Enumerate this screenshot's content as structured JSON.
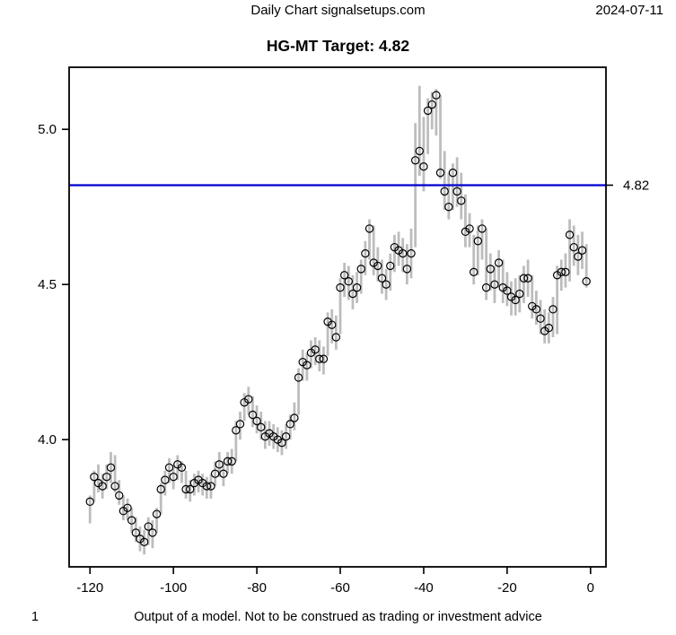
{
  "header": {
    "center": "Daily Chart signalsetups.com",
    "date": "2024-07-11"
  },
  "title": "HG-MT Target: 4.82",
  "footer": {
    "page": "1",
    "disclaimer": "Output of a model. Not to be construed as trading or investment advice"
  },
  "chart_data": {
    "type": "scatter",
    "subtype": "daily close dots with high-low range bars",
    "title": "HG-MT Target: 4.82",
    "xlabel": "",
    "ylabel": "",
    "legend": "none",
    "grid": false,
    "x_ticks": [
      -120,
      -100,
      -80,
      -60,
      -40,
      -20,
      0
    ],
    "y_ticks": [
      4.0,
      4.5,
      5.0
    ],
    "xlim": [
      -125,
      3.7
    ],
    "ylim": [
      3.59,
      5.2
    ],
    "target_line": {
      "value": 4.82,
      "label": "4.82",
      "color": "#0000cd",
      "label_side": "right"
    },
    "colors": {
      "range_bar": "#bdbdbd",
      "point_stroke": "#000000",
      "box": "#000000",
      "background": "#ffffff"
    },
    "x": [
      -120,
      -119,
      -118,
      -117,
      -116,
      -115,
      -114,
      -113,
      -112,
      -111,
      -110,
      -109,
      -108,
      -107,
      -106,
      -105,
      -104,
      -103,
      -102,
      -101,
      -100,
      -99,
      -98,
      -97,
      -96,
      -95,
      -94,
      -93,
      -92,
      -91,
      -90,
      -89,
      -88,
      -87,
      -86,
      -85,
      -84,
      -83,
      -82,
      -81,
      -80,
      -79,
      -78,
      -77,
      -76,
      -75,
      -74,
      -73,
      -72,
      -71,
      -70,
      -69,
      -68,
      -67,
      -66,
      -65,
      -64,
      -63,
      -62,
      -61,
      -60,
      -59,
      -58,
      -57,
      -56,
      -55,
      -54,
      -53,
      -52,
      -51,
      -50,
      -49,
      -48,
      -47,
      -46,
      -45,
      -44,
      -43,
      -42,
      -41,
      -40,
      -39,
      -38,
      -37,
      -36,
      -35,
      -34,
      -33,
      -32,
      -31,
      -30,
      -29,
      -28,
      -27,
      -26,
      -25,
      -24,
      -23,
      -22,
      -21,
      -20,
      -19,
      -18,
      -17,
      -16,
      -15,
      -14,
      -13,
      -12,
      -11,
      -10,
      -9,
      -8,
      -7,
      -6,
      -5,
      -4,
      -3,
      -2,
      -1
    ],
    "close": [
      3.8,
      3.88,
      3.86,
      3.85,
      3.88,
      3.91,
      3.85,
      3.82,
      3.77,
      3.78,
      3.74,
      3.7,
      3.68,
      3.67,
      3.72,
      3.7,
      3.76,
      3.84,
      3.87,
      3.91,
      3.88,
      3.92,
      3.91,
      3.84,
      3.84,
      3.86,
      3.87,
      3.86,
      3.85,
      3.85,
      3.89,
      3.92,
      3.89,
      3.93,
      3.93,
      4.03,
      4.05,
      4.12,
      4.13,
      4.08,
      4.06,
      4.04,
      4.01,
      4.02,
      4.01,
      4.0,
      3.99,
      4.01,
      4.05,
      4.07,
      4.2,
      4.25,
      4.24,
      4.28,
      4.29,
      4.26,
      4.26,
      4.38,
      4.37,
      4.33,
      4.49,
      4.53,
      4.51,
      4.47,
      4.49,
      4.55,
      4.6,
      4.68,
      4.57,
      4.56,
      4.52,
      4.5,
      4.56,
      4.62,
      4.61,
      4.6,
      4.55,
      4.6,
      4.9,
      4.93,
      4.88,
      5.06,
      5.08,
      5.11,
      4.86,
      4.8,
      4.75,
      4.86,
      4.8,
      4.77,
      4.67,
      4.68,
      4.54,
      4.64,
      4.68,
      4.49,
      4.55,
      4.5,
      4.57,
      4.49,
      4.48,
      4.46,
      4.45,
      4.47,
      4.52,
      4.52,
      4.43,
      4.42,
      4.39,
      4.35,
      4.36,
      4.42,
      4.53,
      4.54,
      4.54,
      4.66,
      4.62,
      4.59,
      4.61,
      4.51
    ],
    "low": [
      3.73,
      3.8,
      3.83,
      3.81,
      3.84,
      3.86,
      3.83,
      3.79,
      3.74,
      3.74,
      3.7,
      3.67,
      3.64,
      3.63,
      3.66,
      3.65,
      3.7,
      3.76,
      3.82,
      3.86,
      3.84,
      3.87,
      3.86,
      3.81,
      3.8,
      3.82,
      3.83,
      3.82,
      3.81,
      3.81,
      3.85,
      3.88,
      3.85,
      3.89,
      3.89,
      3.93,
      4.0,
      4.06,
      4.08,
      4.04,
      4.02,
      4.0,
      3.97,
      3.98,
      3.97,
      3.96,
      3.95,
      3.97,
      4.0,
      4.03,
      4.08,
      4.19,
      4.19,
      4.23,
      4.24,
      4.22,
      4.21,
      4.27,
      4.31,
      4.29,
      4.34,
      4.46,
      4.45,
      4.42,
      4.44,
      4.47,
      4.53,
      4.58,
      4.53,
      4.51,
      4.47,
      4.45,
      4.48,
      4.54,
      4.56,
      4.54,
      4.5,
      4.52,
      4.62,
      4.85,
      4.8,
      4.92,
      5.0,
      4.98,
      4.84,
      4.74,
      4.71,
      4.74,
      4.75,
      4.71,
      4.62,
      4.62,
      4.5,
      4.53,
      4.58,
      4.45,
      4.48,
      4.44,
      4.49,
      4.44,
      4.43,
      4.4,
      4.4,
      4.41,
      4.44,
      4.46,
      4.39,
      4.37,
      4.34,
      4.31,
      4.31,
      4.33,
      4.34,
      4.48,
      4.49,
      4.51,
      4.56,
      4.53,
      4.55,
      4.49
    ],
    "high": [
      3.82,
      3.9,
      3.92,
      3.89,
      3.92,
      3.96,
      3.95,
      3.87,
      3.82,
      3.81,
      3.78,
      3.75,
      3.72,
      3.71,
      3.75,
      3.74,
      3.78,
      3.86,
      3.9,
      3.94,
      3.92,
      3.95,
      3.93,
      3.9,
      3.87,
      3.89,
      3.9,
      3.89,
      3.88,
      3.89,
      3.93,
      3.96,
      3.93,
      3.96,
      3.97,
      4.06,
      4.09,
      4.15,
      4.17,
      4.14,
      4.11,
      4.09,
      4.06,
      4.06,
      4.05,
      4.04,
      4.03,
      4.05,
      4.08,
      4.12,
      4.23,
      4.29,
      4.28,
      4.32,
      4.33,
      4.32,
      4.3,
      4.41,
      4.42,
      4.4,
      4.52,
      4.57,
      4.56,
      4.53,
      4.54,
      4.58,
      4.64,
      4.71,
      4.69,
      4.62,
      4.58,
      4.55,
      4.6,
      4.66,
      4.67,
      4.65,
      4.63,
      4.68,
      5.02,
      5.14,
      5.04,
      5.1,
      5.12,
      5.13,
      5.11,
      4.93,
      4.86,
      4.89,
      4.91,
      4.86,
      4.79,
      4.73,
      4.66,
      4.69,
      4.71,
      4.68,
      4.6,
      4.56,
      4.61,
      4.58,
      4.54,
      4.51,
      4.52,
      4.53,
      4.56,
      4.58,
      4.53,
      4.48,
      4.45,
      4.42,
      4.41,
      4.46,
      4.56,
      4.58,
      4.6,
      4.71,
      4.69,
      4.66,
      4.67,
      4.63
    ]
  }
}
